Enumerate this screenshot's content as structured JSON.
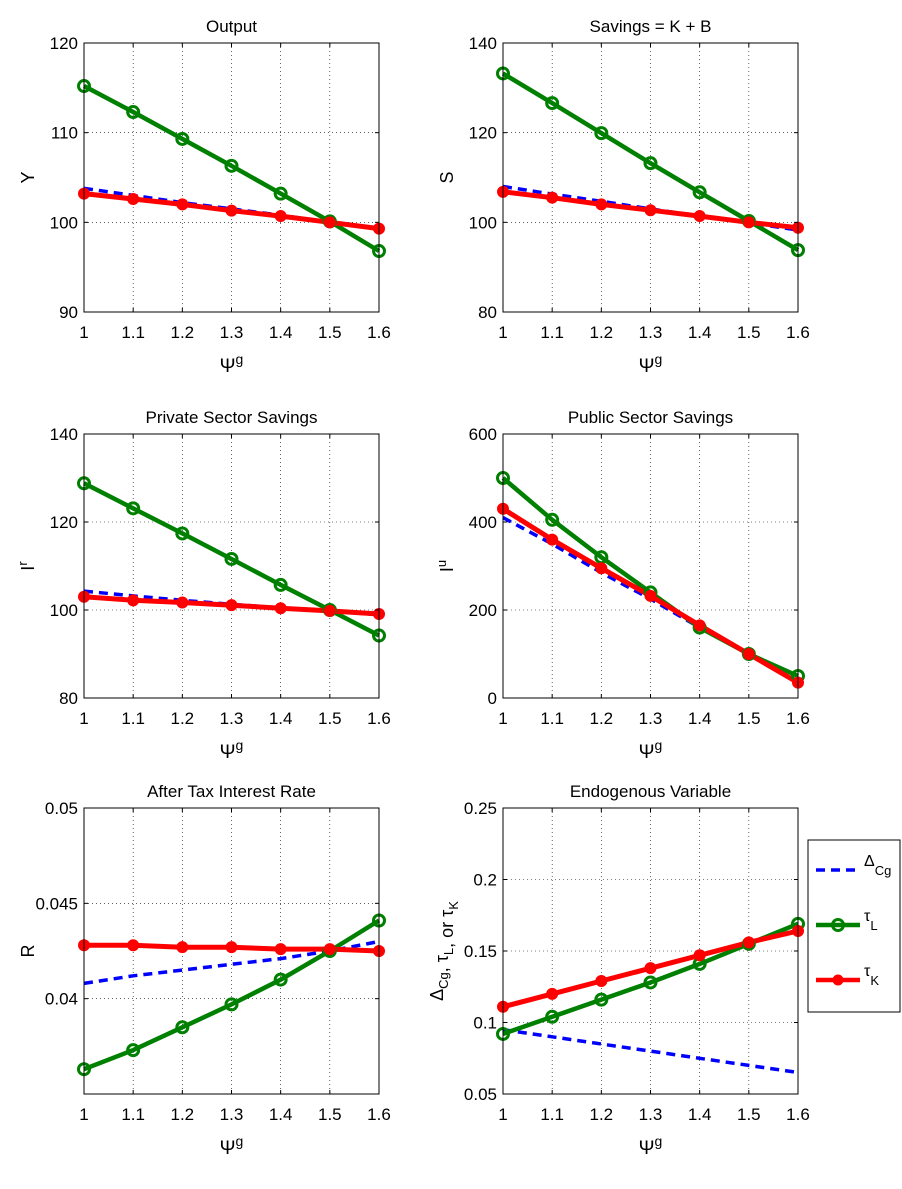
{
  "chart_data": [
    {
      "type": "line",
      "title": "Output",
      "ylabel": "Y",
      "xlabel": "Ψ",
      "xlabel_sup": "g",
      "x": [
        1,
        1.1,
        1.2,
        1.3,
        1.4,
        1.5,
        1.6
      ],
      "xlim": [
        1,
        1.6
      ],
      "ylim": [
        90,
        120
      ],
      "xticks": [
        "1",
        "1.1",
        "1.2",
        "1.3",
        "1.4",
        "1.5",
        "1.6"
      ],
      "yticks": [
        90,
        100,
        110,
        120
      ],
      "grid": true,
      "series": [
        {
          "key": "dcg",
          "values": [
            103.8,
            103.0,
            102.2,
            101.5,
            100.8,
            100.0,
            99.3
          ]
        },
        {
          "key": "tl",
          "values": [
            115.2,
            112.3,
            109.3,
            106.3,
            103.2,
            100.1,
            96.8
          ]
        },
        {
          "key": "tk",
          "values": [
            103.2,
            102.6,
            102.0,
            101.3,
            100.7,
            100.0,
            99.3
          ]
        }
      ]
    },
    {
      "type": "line",
      "title": "Savings = K + B",
      "ylabel": "S",
      "xlabel": "Ψ",
      "xlabel_sup": "g",
      "x": [
        1,
        1.1,
        1.2,
        1.3,
        1.4,
        1.5,
        1.6
      ],
      "xlim": [
        1,
        1.6
      ],
      "ylim": [
        80,
        140
      ],
      "xticks": [
        "1",
        "1.1",
        "1.2",
        "1.3",
        "1.4",
        "1.5",
        "1.6"
      ],
      "yticks": [
        80,
        100,
        120,
        140
      ],
      "grid": true,
      "series": [
        {
          "key": "dcg",
          "values": [
            108.0,
            106.3,
            104.7,
            103.0,
            101.4,
            99.9,
            98.3
          ]
        },
        {
          "key": "tl",
          "values": [
            133.2,
            126.6,
            119.9,
            113.2,
            106.7,
            100.3,
            93.8
          ]
        },
        {
          "key": "tk",
          "values": [
            106.8,
            105.5,
            104.0,
            102.7,
            101.4,
            100.0,
            98.8
          ]
        }
      ]
    },
    {
      "type": "line",
      "title": "Private Sector Savings",
      "ylabel": "I",
      "ylabel_sup": "r",
      "xlabel": "Ψ",
      "xlabel_sup": "g",
      "x": [
        1,
        1.1,
        1.2,
        1.3,
        1.4,
        1.5,
        1.6
      ],
      "xlim": [
        1,
        1.6
      ],
      "ylim": [
        80,
        140
      ],
      "xticks": [
        "1",
        "1.1",
        "1.2",
        "1.3",
        "1.4",
        "1.5",
        "1.6"
      ],
      "yticks": [
        80,
        100,
        120,
        140
      ],
      "grid": true,
      "series": [
        {
          "key": "dcg",
          "values": [
            104.3,
            103.2,
            102.2,
            101.3,
            100.5,
            99.8,
            98.9
          ]
        },
        {
          "key": "tl",
          "values": [
            128.8,
            123.1,
            117.4,
            111.6,
            105.7,
            100.0,
            94.2
          ]
        },
        {
          "key": "tk",
          "values": [
            103.0,
            102.2,
            101.7,
            101.1,
            100.4,
            99.8,
            99.1
          ]
        }
      ]
    },
    {
      "type": "line",
      "title": "Public Sector Savings",
      "ylabel": "I",
      "ylabel_sup": "u",
      "xlabel": "Ψ",
      "xlabel_sup": "g",
      "x": [
        1,
        1.1,
        1.2,
        1.3,
        1.4,
        1.5,
        1.6
      ],
      "xlim": [
        1,
        1.6
      ],
      "ylim": [
        0,
        600
      ],
      "xticks": [
        "1",
        "1.1",
        "1.2",
        "1.3",
        "1.4",
        "1.5",
        "1.6"
      ],
      "yticks": [
        0,
        200,
        400,
        600
      ],
      "grid": true,
      "series": [
        {
          "key": "dcg",
          "values": [
            410,
            350,
            285,
            225,
            160,
            100,
            38
          ]
        },
        {
          "key": "tl",
          "values": [
            500,
            405,
            320,
            240,
            160,
            100,
            50
          ]
        },
        {
          "key": "tk",
          "values": [
            430,
            360,
            295,
            232,
            165,
            100,
            35
          ]
        }
      ]
    },
    {
      "type": "line",
      "title": "After Tax Interest Rate",
      "ylabel": "R",
      "xlabel": "Ψ",
      "xlabel_sup": "g",
      "x": [
        1,
        1.1,
        1.2,
        1.3,
        1.4,
        1.5,
        1.6
      ],
      "xlim": [
        1,
        1.6
      ],
      "ylim": [
        0.035,
        0.05
      ],
      "xticks": [
        "1",
        "1.1",
        "1.2",
        "1.3",
        "1.4",
        "1.5",
        "1.6"
      ],
      "yticks": [
        0.04,
        0.045,
        0.05
      ],
      "grid": true,
      "series": [
        {
          "key": "dcg",
          "values": [
            0.0408,
            0.0412,
            0.0415,
            0.0418,
            0.0421,
            0.0425,
            0.043
          ]
        },
        {
          "key": "tl",
          "values": [
            0.0363,
            0.0373,
            0.0385,
            0.0397,
            0.041,
            0.0425,
            0.0441
          ]
        },
        {
          "key": "tk",
          "values": [
            0.0428,
            0.0428,
            0.0427,
            0.0427,
            0.0426,
            0.0426,
            0.0425
          ]
        }
      ]
    },
    {
      "type": "line",
      "title": "Endogenous Variable",
      "ylabel": "Δ_Cg, τ_L, or τ_K",
      "xlabel": "Ψ",
      "xlabel_sup": "g",
      "x": [
        1,
        1.1,
        1.2,
        1.3,
        1.4,
        1.5,
        1.6
      ],
      "xlim": [
        1,
        1.6
      ],
      "ylim": [
        0.05,
        0.25
      ],
      "xticks": [
        "1",
        "1.1",
        "1.2",
        "1.3",
        "1.4",
        "1.5",
        "1.6"
      ],
      "yticks": [
        0.05,
        0.1,
        0.15,
        0.2,
        0.25
      ],
      "grid": true,
      "legend": "right",
      "series": [
        {
          "key": "dcg",
          "values": [
            0.095,
            0.09,
            0.085,
            0.08,
            0.075,
            0.07,
            0.065
          ]
        },
        {
          "key": "tl",
          "values": [
            0.092,
            0.104,
            0.116,
            0.128,
            0.141,
            0.155,
            0.169
          ]
        },
        {
          "key": "tk",
          "values": [
            0.111,
            0.12,
            0.129,
            0.138,
            0.147,
            0.156,
            0.164
          ]
        }
      ]
    }
  ],
  "legend": {
    "entries": [
      {
        "key": "dcg",
        "base": "Δ",
        "sub": "Cg",
        "color": "#0000ff",
        "style": "dashed"
      },
      {
        "key": "tl",
        "base": "τ",
        "sub": "L",
        "color": "#008000",
        "style": "solid-circle"
      },
      {
        "key": "tk",
        "base": "τ",
        "sub": "K",
        "color": "#ff0000",
        "style": "solid-dot"
      }
    ]
  },
  "colors": {
    "dcg": "#0000ff",
    "tl": "#008000",
    "tk": "#ff0000"
  }
}
